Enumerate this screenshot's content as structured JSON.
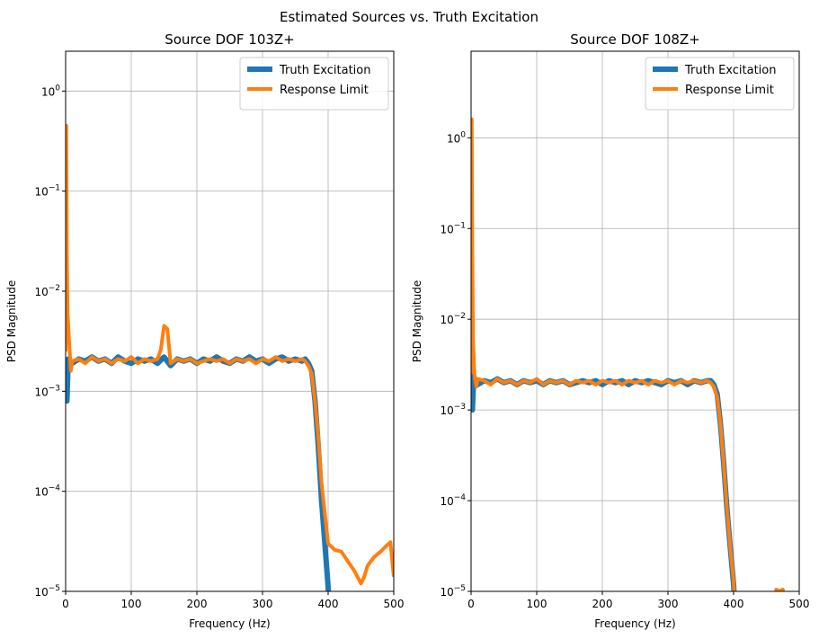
{
  "figure": {
    "suptitle": "Estimated Sources vs. Truth Excitation"
  },
  "colors": {
    "truth": "#1f77b4",
    "response": "#ff7f0e"
  },
  "chart_data": [
    {
      "type": "line",
      "title": "Source DOF 103Z+",
      "xlabel": "Frequency (Hz)",
      "ylabel": "PSD Magnitude",
      "xlim": [
        0,
        500
      ],
      "ylim": [
        1e-05,
        2.5
      ],
      "yscale": "log",
      "grid": true,
      "legend": "upper right",
      "xticks": [
        "0",
        "100",
        "200",
        "300",
        "400",
        "500"
      ],
      "yticks": [
        {
          "base": "10",
          "exp": "−5"
        },
        {
          "base": "10",
          "exp": "−4"
        },
        {
          "base": "10",
          "exp": "−3"
        },
        {
          "base": "10",
          "exp": "−2"
        },
        {
          "base": "10",
          "exp": "−1"
        },
        {
          "base": "10",
          "exp": "0"
        }
      ],
      "series": [
        {
          "name": "Truth Excitation",
          "points": [
            [
              0,
              0.0022
            ],
            [
              2,
              0.0008
            ],
            [
              4,
              0.0021
            ],
            [
              10,
              0.0019
            ],
            [
              20,
              0.0021
            ],
            [
              30,
              0.002
            ],
            [
              40,
              0.0022
            ],
            [
              50,
              0.002
            ],
            [
              60,
              0.0021
            ],
            [
              70,
              0.0019
            ],
            [
              80,
              0.0022
            ],
            [
              90,
              0.002
            ],
            [
              100,
              0.0019
            ],
            [
              110,
              0.0021
            ],
            [
              120,
              0.002
            ],
            [
              130,
              0.0021
            ],
            [
              140,
              0.0019
            ],
            [
              150,
              0.0022
            ],
            [
              160,
              0.0018
            ],
            [
              170,
              0.0021
            ],
            [
              180,
              0.002
            ],
            [
              190,
              0.0021
            ],
            [
              200,
              0.0019
            ],
            [
              210,
              0.0021
            ],
            [
              220,
              0.002
            ],
            [
              230,
              0.0022
            ],
            [
              240,
              0.002
            ],
            [
              250,
              0.0019
            ],
            [
              260,
              0.0021
            ],
            [
              270,
              0.002
            ],
            [
              280,
              0.0022
            ],
            [
              290,
              0.002
            ],
            [
              300,
              0.0021
            ],
            [
              310,
              0.0019
            ],
            [
              320,
              0.0021
            ],
            [
              330,
              0.0022
            ],
            [
              340,
              0.002
            ],
            [
              350,
              0.0021
            ],
            [
              360,
              0.002
            ],
            [
              365,
              0.0021
            ],
            [
              370,
              0.0019
            ],
            [
              375,
              0.0016
            ],
            [
              380,
              0.0008
            ],
            [
              385,
              0.00028
            ],
            [
              390,
              8e-05
            ],
            [
              395,
              3e-05
            ],
            [
              400,
              1.1e-05
            ],
            [
              402,
              5e-06
            ]
          ]
        },
        {
          "name": "Response Limit",
          "points": [
            [
              0,
              0.0025
            ],
            [
              1,
              0.45
            ],
            [
              2,
              0.02
            ],
            [
              3,
              0.006
            ],
            [
              5,
              0.0035
            ],
            [
              8,
              0.0016
            ],
            [
              10,
              0.002
            ],
            [
              20,
              0.0021
            ],
            [
              30,
              0.0019
            ],
            [
              40,
              0.0022
            ],
            [
              50,
              0.002
            ],
            [
              60,
              0.0021
            ],
            [
              70,
              0.0019
            ],
            [
              80,
              0.0021
            ],
            [
              90,
              0.002
            ],
            [
              100,
              0.0022
            ],
            [
              110,
              0.0019
            ],
            [
              120,
              0.0021
            ],
            [
              130,
              0.002
            ],
            [
              140,
              0.0021
            ],
            [
              145,
              0.0026
            ],
            [
              150,
              0.0045
            ],
            [
              155,
              0.0042
            ],
            [
              160,
              0.0019
            ],
            [
              170,
              0.0021
            ],
            [
              180,
              0.002
            ],
            [
              190,
              0.0021
            ],
            [
              200,
              0.0019
            ],
            [
              210,
              0.002
            ],
            [
              220,
              0.0021
            ],
            [
              230,
              0.002
            ],
            [
              240,
              0.0021
            ],
            [
              250,
              0.0019
            ],
            [
              260,
              0.0021
            ],
            [
              270,
              0.002
            ],
            [
              280,
              0.0021
            ],
            [
              290,
              0.0019
            ],
            [
              300,
              0.0021
            ],
            [
              310,
              0.002
            ],
            [
              320,
              0.0022
            ],
            [
              330,
              0.002
            ],
            [
              340,
              0.0021
            ],
            [
              350,
              0.002
            ],
            [
              360,
              0.0021
            ],
            [
              365,
              0.002
            ],
            [
              370,
              0.0018
            ],
            [
              375,
              0.0015
            ],
            [
              380,
              0.0008
            ],
            [
              385,
              0.00035
            ],
            [
              390,
              0.00012
            ],
            [
              395,
              6e-05
            ],
            [
              400,
              3e-05
            ],
            [
              405,
              2.8e-05
            ],
            [
              410,
              2.6e-05
            ],
            [
              420,
              2.5e-05
            ],
            [
              430,
              2e-05
            ],
            [
              440,
              1.6e-05
            ],
            [
              450,
              1.2e-05
            ],
            [
              455,
              1.4e-05
            ],
            [
              460,
              1.8e-05
            ],
            [
              470,
              2.2e-05
            ],
            [
              480,
              2.5e-05
            ],
            [
              490,
              2.9e-05
            ],
            [
              495,
              3.1e-05
            ],
            [
              500,
              1.4e-05
            ]
          ]
        }
      ]
    },
    {
      "type": "line",
      "title": "Source DOF 108Z+",
      "xlabel": "Frequency (Hz)",
      "ylabel": "PSD Magnitude",
      "xlim": [
        0,
        500
      ],
      "ylim": [
        1e-05,
        9
      ],
      "yscale": "log",
      "grid": true,
      "legend": "upper right",
      "xticks": [
        "0",
        "100",
        "200",
        "300",
        "400",
        "500"
      ],
      "yticks": [
        {
          "base": "10",
          "exp": "−5"
        },
        {
          "base": "10",
          "exp": "−4"
        },
        {
          "base": "10",
          "exp": "−3"
        },
        {
          "base": "10",
          "exp": "−2"
        },
        {
          "base": "10",
          "exp": "−1"
        },
        {
          "base": "10",
          "exp": "0"
        }
      ],
      "series": [
        {
          "name": "Truth Excitation",
          "points": [
            [
              0,
              0.0025
            ],
            [
              2,
              0.001
            ],
            [
              4,
              0.0022
            ],
            [
              10,
              0.0019
            ],
            [
              20,
              0.0021
            ],
            [
              30,
              0.002
            ],
            [
              40,
              0.0022
            ],
            [
              50,
              0.002
            ],
            [
              60,
              0.0021
            ],
            [
              70,
              0.0019
            ],
            [
              80,
              0.0021
            ],
            [
              90,
              0.002
            ],
            [
              100,
              0.0021
            ],
            [
              110,
              0.0019
            ],
            [
              120,
              0.0021
            ],
            [
              130,
              0.002
            ],
            [
              140,
              0.0021
            ],
            [
              150,
              0.0019
            ],
            [
              160,
              0.002
            ],
            [
              170,
              0.0021
            ],
            [
              180,
              0.002
            ],
            [
              190,
              0.0021
            ],
            [
              200,
              0.0019
            ],
            [
              210,
              0.0021
            ],
            [
              220,
              0.002
            ],
            [
              230,
              0.0021
            ],
            [
              240,
              0.0019
            ],
            [
              250,
              0.0021
            ],
            [
              260,
              0.002
            ],
            [
              270,
              0.0021
            ],
            [
              280,
              0.002
            ],
            [
              290,
              0.0019
            ],
            [
              300,
              0.0021
            ],
            [
              310,
              0.002
            ],
            [
              320,
              0.0021
            ],
            [
              330,
              0.0019
            ],
            [
              340,
              0.0021
            ],
            [
              350,
              0.002
            ],
            [
              360,
              0.0021
            ],
            [
              365,
              0.0021
            ],
            [
              370,
              0.0019
            ],
            [
              375,
              0.0015
            ],
            [
              380,
              0.0007
            ],
            [
              385,
              0.00025
            ],
            [
              390,
              8e-05
            ],
            [
              395,
              3e-05
            ],
            [
              400,
              1.2e-05
            ],
            [
              403,
              5e-06
            ]
          ]
        },
        {
          "name": "Response Limit",
          "points": [
            [
              0,
              0.0025
            ],
            [
              1,
              1.6
            ],
            [
              2,
              0.05
            ],
            [
              3,
              0.006
            ],
            [
              5,
              0.0025
            ],
            [
              8,
              0.0018
            ],
            [
              10,
              0.0022
            ],
            [
              20,
              0.0021
            ],
            [
              30,
              0.0019
            ],
            [
              40,
              0.0022
            ],
            [
              50,
              0.002
            ],
            [
              60,
              0.0021
            ],
            [
              70,
              0.0019
            ],
            [
              80,
              0.0021
            ],
            [
              90,
              0.002
            ],
            [
              100,
              0.0022
            ],
            [
              110,
              0.0019
            ],
            [
              120,
              0.0021
            ],
            [
              130,
              0.002
            ],
            [
              140,
              0.0021
            ],
            [
              150,
              0.0019
            ],
            [
              160,
              0.0021
            ],
            [
              170,
              0.002
            ],
            [
              180,
              0.0021
            ],
            [
              190,
              0.0019
            ],
            [
              200,
              0.0021
            ],
            [
              210,
              0.002
            ],
            [
              220,
              0.0021
            ],
            [
              230,
              0.0019
            ],
            [
              240,
              0.0021
            ],
            [
              250,
              0.002
            ],
            [
              260,
              0.0021
            ],
            [
              270,
              0.0019
            ],
            [
              280,
              0.0021
            ],
            [
              290,
              0.002
            ],
            [
              300,
              0.0021
            ],
            [
              310,
              0.0019
            ],
            [
              320,
              0.0021
            ],
            [
              330,
              0.002
            ],
            [
              340,
              0.0021
            ],
            [
              350,
              0.002
            ],
            [
              360,
              0.0021
            ],
            [
              365,
              0.002
            ],
            [
              370,
              0.0018
            ],
            [
              375,
              0.0014
            ],
            [
              380,
              0.0007
            ],
            [
              385,
              0.00025
            ],
            [
              390,
              8e-05
            ],
            [
              395,
              3e-05
            ],
            [
              400,
              1.3e-05
            ],
            [
              403,
              5e-06
            ]
          ]
        },
        {
          "name": "Response Limit",
          "points": [
            [
              460,
              5e-06
            ],
            [
              465,
              1.05e-05
            ],
            [
              470,
              1e-05
            ],
            [
              475,
              1.05e-05
            ],
            [
              480,
              5e-06
            ]
          ]
        }
      ]
    }
  ]
}
